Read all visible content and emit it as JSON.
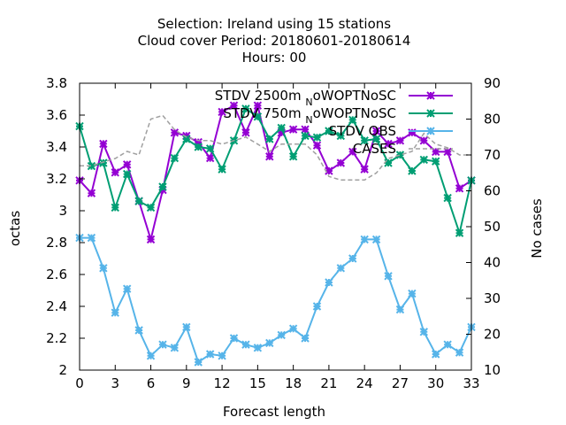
{
  "chart_data": {
    "type": "line",
    "title_lines": [
      "Selection: Ireland using    15 stations",
      "Cloud cover   Period: 20180601-20180614",
      "Hours:  00"
    ],
    "xlabel": "Forecast length",
    "ylabel": "octas",
    "y2label": "No cases",
    "xlim": [
      0,
      33
    ],
    "ylim": [
      2,
      3.8
    ],
    "y2lim": [
      10,
      90
    ],
    "x_ticks": [
      "0",
      "3",
      "6",
      "9",
      "12",
      "15",
      "18",
      "21",
      "24",
      "27",
      "30",
      "33"
    ],
    "y_ticks": [
      "2",
      "2.2",
      "2.4",
      "2.6",
      "2.8",
      "3",
      "3.2",
      "3.4",
      "3.6",
      "3.8"
    ],
    "y2_ticks": [
      "10",
      "20",
      "30",
      "40",
      "50",
      "60",
      "70",
      "80",
      "90"
    ],
    "grid": false,
    "legend_position": "top-right",
    "x": [
      0,
      1,
      2,
      3,
      4,
      5,
      6,
      7,
      8,
      9,
      10,
      11,
      12,
      13,
      14,
      15,
      16,
      17,
      18,
      19,
      20,
      21,
      22,
      23,
      24,
      25,
      26,
      27,
      28,
      29,
      30,
      31,
      32,
      33
    ],
    "series": [
      {
        "name": "STDV 2500m_NoWOPTNoSC",
        "legend_main": "STDV 2500m",
        "legend_sub": "N",
        "legend_tail": "oWOPTNoSC",
        "color": "#9400d3",
        "axis": "y1",
        "style": "line-marker",
        "values": [
          3.19,
          3.11,
          3.42,
          3.24,
          3.29,
          3.06,
          2.82,
          3.13,
          3.49,
          3.47,
          3.43,
          3.33,
          3.62,
          3.66,
          3.49,
          3.66,
          3.34,
          3.49,
          3.51,
          3.51,
          3.41,
          3.25,
          3.3,
          3.37,
          3.26,
          3.5,
          3.42,
          3.44,
          3.49,
          3.44,
          3.37,
          3.37,
          3.14,
          3.19
        ]
      },
      {
        "name": "STDV 750m_NoWOPTNoSC",
        "legend_main": "STDV 750m",
        "legend_sub": "N",
        "legend_tail": "oWOPTNoSC",
        "color": "#009e73",
        "axis": "y1",
        "style": "line-marker",
        "values": [
          3.53,
          3.28,
          3.3,
          3.02,
          3.23,
          3.06,
          3.02,
          3.15,
          3.33,
          3.45,
          3.4,
          3.39,
          3.26,
          3.44,
          3.64,
          3.59,
          3.45,
          3.52,
          3.34,
          3.47,
          3.46,
          3.5,
          3.47,
          3.57,
          3.44,
          3.45,
          3.3,
          3.35,
          3.25,
          3.32,
          3.31,
          3.08,
          2.86,
          3.19
        ]
      },
      {
        "name": "STDV OBS",
        "legend_main": "STDV OBS",
        "legend_sub": "",
        "legend_tail": "",
        "color": "#56b4e9",
        "axis": "y1",
        "style": "line-marker",
        "values": [
          2.83,
          2.83,
          2.64,
          2.36,
          2.51,
          2.25,
          2.09,
          2.16,
          2.14,
          2.27,
          2.05,
          2.1,
          2.09,
          2.2,
          2.16,
          2.14,
          2.17,
          2.22,
          2.26,
          2.2,
          2.4,
          2.55,
          2.64,
          2.7,
          2.82,
          2.82,
          2.59,
          2.38,
          2.48,
          2.24,
          2.1,
          2.16,
          2.11,
          2.27
        ]
      },
      {
        "name": "CASES",
        "legend_main": "CASES",
        "legend_sub": "",
        "legend_tail": "",
        "color": "#a0a0a0",
        "axis": "y2",
        "style": "dashed",
        "values": [
          67,
          67,
          68,
          69,
          71,
          70,
          80,
          81,
          77,
          75,
          74,
          74,
          73,
          74,
          75,
          73,
          71,
          73,
          73,
          73,
          70,
          64,
          63,
          63,
          63,
          65,
          69,
          70,
          71,
          76,
          73,
          72,
          70,
          70
        ]
      }
    ]
  }
}
